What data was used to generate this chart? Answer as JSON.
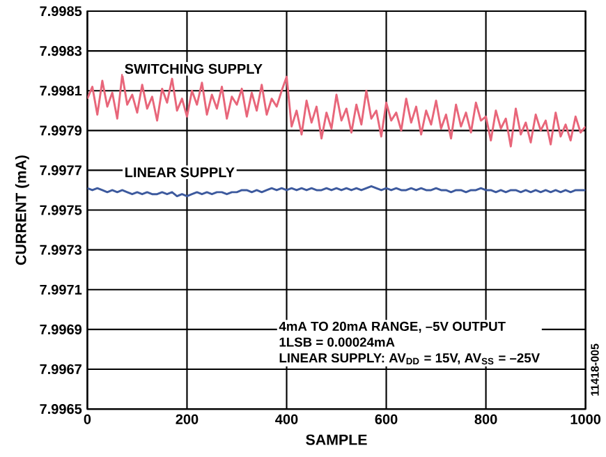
{
  "chart_data": {
    "type": "line",
    "xlabel": "SAMPLE",
    "ylabel": "CURRENT (mA)",
    "x": [
      0,
      10,
      20,
      30,
      40,
      50,
      60,
      70,
      80,
      90,
      100,
      110,
      120,
      130,
      140,
      150,
      160,
      170,
      180,
      190,
      200,
      210,
      220,
      230,
      240,
      250,
      260,
      270,
      280,
      290,
      300,
      310,
      320,
      330,
      340,
      350,
      360,
      370,
      380,
      390,
      400,
      410,
      420,
      430,
      440,
      450,
      460,
      470,
      480,
      490,
      500,
      510,
      520,
      530,
      540,
      550,
      560,
      570,
      580,
      590,
      600,
      610,
      620,
      630,
      640,
      650,
      660,
      670,
      680,
      690,
      700,
      710,
      720,
      730,
      740,
      750,
      760,
      770,
      780,
      790,
      800,
      810,
      820,
      830,
      840,
      850,
      860,
      870,
      880,
      890,
      900,
      910,
      920,
      930,
      940,
      950,
      960,
      970,
      980,
      990,
      1000
    ],
    "series": [
      {
        "name": "SWITCHING SUPPLY",
        "color": "#e8667a",
        "values": [
          7.99806,
          7.99812,
          7.99798,
          7.99815,
          7.99802,
          7.99809,
          7.99796,
          7.99818,
          7.99803,
          7.99808,
          7.99799,
          7.99813,
          7.99801,
          7.99807,
          7.99795,
          7.99811,
          7.99804,
          7.99816,
          7.998,
          7.99806,
          7.99797,
          7.9981,
          7.99803,
          7.99814,
          7.99798,
          7.99808,
          7.99801,
          7.99812,
          7.99796,
          7.99807,
          7.99803,
          7.99811,
          7.99797,
          7.99809,
          7.998,
          7.99813,
          7.99798,
          7.99806,
          7.99802,
          7.9981,
          7.99817,
          7.99792,
          7.998,
          7.99788,
          7.99805,
          7.99794,
          7.99802,
          7.99786,
          7.99799,
          7.99791,
          7.99808,
          7.99795,
          7.99801,
          7.99789,
          7.99803,
          7.99793,
          7.9981,
          7.99796,
          7.998,
          7.99787,
          7.99804,
          7.99795,
          7.99799,
          7.9979,
          7.99806,
          7.99794,
          7.99802,
          7.99788,
          7.998,
          7.99793,
          7.99805,
          7.99791,
          7.99798,
          7.99786,
          7.99803,
          7.99792,
          7.99799,
          7.99789,
          7.99804,
          7.99795,
          7.99797,
          7.99785,
          7.998,
          7.99791,
          7.99796,
          7.99782,
          7.99801,
          7.99788,
          7.99794,
          7.99784,
          7.99798,
          7.9979,
          7.99795,
          7.99783,
          7.99799,
          7.99787,
          7.99793,
          7.99785,
          7.99797,
          7.99789,
          7.99792
        ]
      },
      {
        "name": "LINEAR SUPPLY",
        "color": "#3d5a9e",
        "values": [
          7.99761,
          7.9976,
          7.99761,
          7.9976,
          7.99759,
          7.9976,
          7.99759,
          7.9976,
          7.99759,
          7.99758,
          7.99759,
          7.99758,
          7.99759,
          7.99758,
          7.99758,
          7.99759,
          7.99758,
          7.99759,
          7.99757,
          7.99758,
          7.99757,
          7.99758,
          7.99759,
          7.99758,
          7.99759,
          7.99758,
          7.99759,
          7.99759,
          7.99758,
          7.99759,
          7.99759,
          7.9976,
          7.9976,
          7.99759,
          7.9976,
          7.99759,
          7.9976,
          7.99761,
          7.9976,
          7.99761,
          7.9976,
          7.99761,
          7.9976,
          7.99761,
          7.9976,
          7.99761,
          7.9976,
          7.9976,
          7.99761,
          7.9976,
          7.99761,
          7.9976,
          7.99761,
          7.9976,
          7.99761,
          7.9976,
          7.99761,
          7.99762,
          7.99761,
          7.9976,
          7.99761,
          7.9976,
          7.99761,
          7.9976,
          7.9976,
          7.99761,
          7.9976,
          7.99761,
          7.9976,
          7.9976,
          7.99761,
          7.9976,
          7.9976,
          7.99759,
          7.9976,
          7.9976,
          7.99759,
          7.9976,
          7.9976,
          7.99761,
          7.9976,
          7.9976,
          7.99759,
          7.9976,
          7.99759,
          7.9976,
          7.9976,
          7.99759,
          7.9976,
          7.99759,
          7.9976,
          7.99759,
          7.9976,
          7.99759,
          7.9976,
          7.99759,
          7.9976,
          7.99759,
          7.9976,
          7.9976,
          7.9976
        ]
      }
    ],
    "xlim": [
      0,
      1000
    ],
    "xticks": [
      0,
      200,
      400,
      600,
      800,
      1000
    ],
    "ylim": [
      7.9965,
      7.9985
    ],
    "yticks": [
      7.9965,
      7.9967,
      7.9969,
      7.9971,
      7.9973,
      7.9975,
      7.9977,
      7.9979,
      7.9981,
      7.9983,
      7.9985
    ],
    "grid": true,
    "annotations": [
      "4mA TO 20mA RANGE, –5V OUTPUT",
      "1LSB = 0.00024mA",
      "LINEAR SUPPLY: AV$_{DD}$ = 15V, AV$_{SS}$ = –25V",
      "11418-005"
    ]
  }
}
